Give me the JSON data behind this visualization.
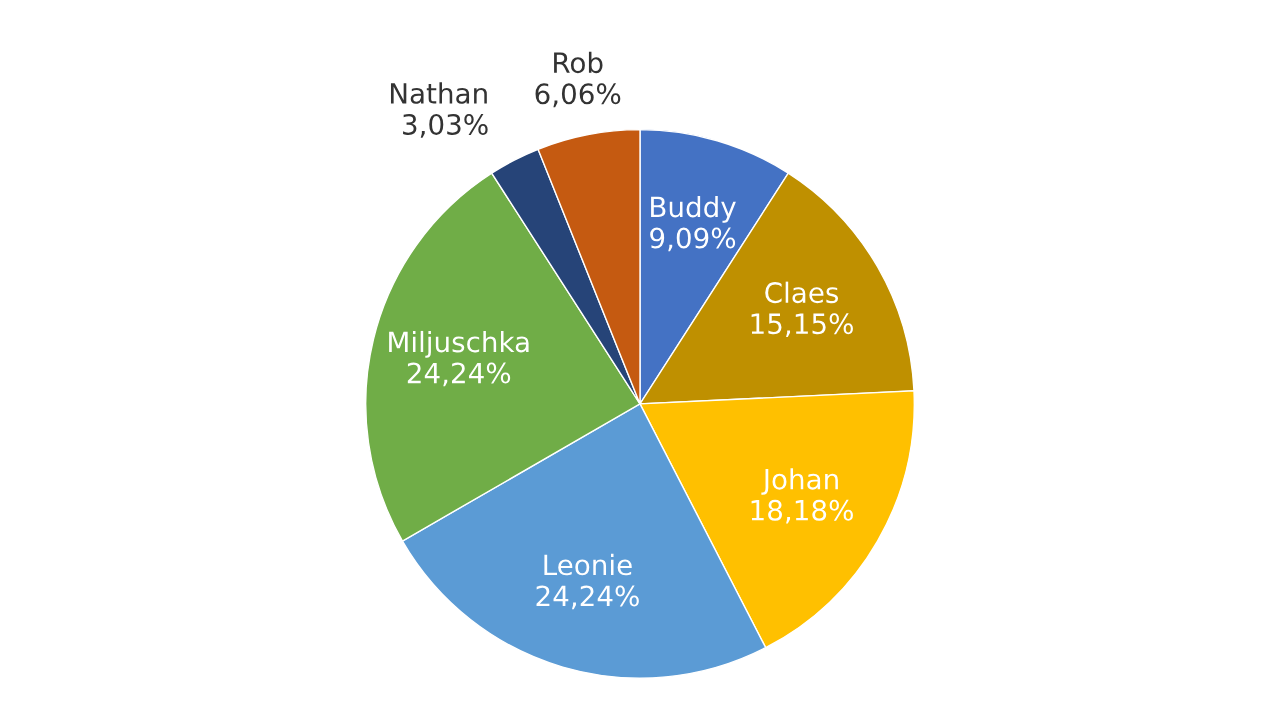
{
  "chart_data": {
    "type": "pie",
    "categories": [
      "Buddy",
      "Claes",
      "Johan",
      "Leonie",
      "Miljuschka",
      "Nathan",
      "Rob"
    ],
    "values": [
      9.09,
      15.15,
      18.18,
      24.24,
      24.24,
      3.03,
      6.06
    ],
    "value_labels": [
      "9,09%",
      "15,15%",
      "18,18%",
      "24,24%",
      "24,24%",
      "3,03%",
      "6,06%"
    ],
    "colors": [
      "#4472c4",
      "#bf9000",
      "#ffc000",
      "#5b9bd5",
      "#70ad47",
      "#264478",
      "#c55a11"
    ],
    "legend": false
  }
}
